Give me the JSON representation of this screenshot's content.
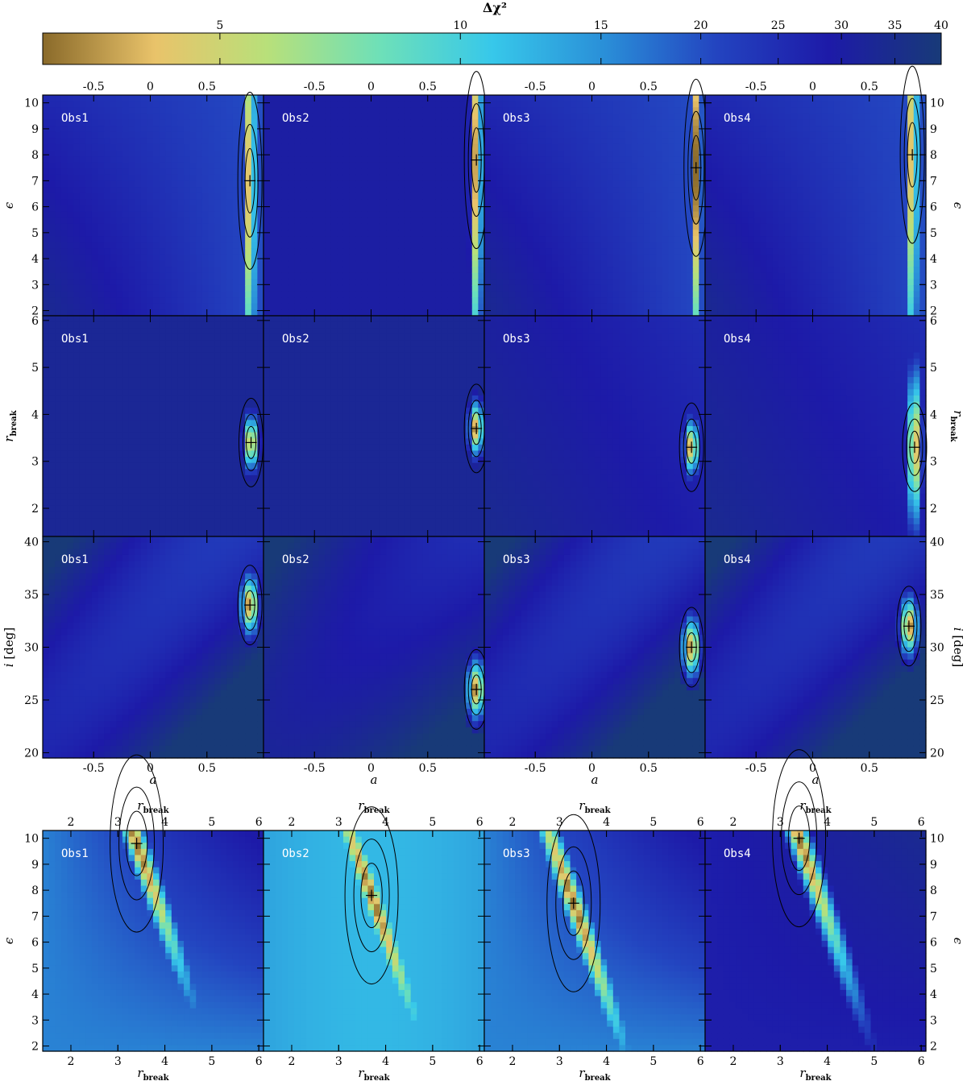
{
  "colorbar": {
    "title": "Δχ²",
    "ticks": [
      5,
      10,
      15,
      20,
      25,
      30,
      35,
      40
    ],
    "range": [
      3,
      40
    ],
    "stops": [
      "#8a6a2a",
      "#e9c36a",
      "#b8e07a",
      "#6ee0b8",
      "#37c8ea",
      "#2a8fd8",
      "#2344c0",
      "#1d1aa8",
      "#183a78"
    ]
  },
  "observations": [
    "Obs1",
    "Obs2",
    "Obs3",
    "Obs4"
  ],
  "axes": {
    "a": {
      "label": "a",
      "range": [
        -0.95,
        1.0
      ],
      "ticks": [
        -0.5,
        0,
        0.5
      ],
      "tick_labels": [
        "-0.5",
        "0",
        "0.5"
      ]
    },
    "epsilon": {
      "label": "ϵ",
      "range": [
        1.8,
        10.3
      ],
      "ticks": [
        2,
        3,
        4,
        5,
        6,
        7,
        8,
        9,
        10
      ]
    },
    "r_break": {
      "label": "r",
      "sub": "break",
      "range": [
        1.4,
        6.1
      ],
      "ticks": [
        2,
        3,
        4,
        5,
        6
      ]
    },
    "incl": {
      "label": "i",
      "unit": "[deg]",
      "range": [
        19.5,
        40.5
      ],
      "ticks": [
        20,
        25,
        30,
        35,
        40
      ]
    },
    "r_break_x": {
      "label": "r",
      "sub": "break",
      "range": [
        1.4,
        6.1
      ],
      "ticks": [
        2,
        3,
        4,
        5,
        6
      ]
    }
  },
  "chart_data": [
    {
      "type": "heatmap",
      "row": "epsilon-vs-a",
      "x": "a",
      "y": "epsilon",
      "panels": [
        {
          "obs": "Obs1",
          "best_fit": [
            0.88,
            7.0
          ]
        },
        {
          "obs": "Obs2",
          "best_fit": [
            0.93,
            7.8
          ]
        },
        {
          "obs": "Obs3",
          "best_fit": [
            0.92,
            7.5
          ]
        },
        {
          "obs": "Obs4",
          "best_fit": [
            0.88,
            8.0
          ]
        }
      ]
    },
    {
      "type": "heatmap",
      "row": "rbreak-vs-a",
      "x": "a",
      "y": "r_break",
      "panels": [
        {
          "obs": "Obs1",
          "best_fit": [
            0.89,
            3.4
          ]
        },
        {
          "obs": "Obs2",
          "best_fit": [
            0.93,
            3.7
          ]
        },
        {
          "obs": "Obs3",
          "best_fit": [
            0.88,
            3.3
          ]
        },
        {
          "obs": "Obs4",
          "best_fit": [
            0.9,
            3.3
          ]
        }
      ]
    },
    {
      "type": "heatmap",
      "row": "incl-vs-a",
      "x": "a",
      "y": "incl",
      "panels": [
        {
          "obs": "Obs1",
          "best_fit": [
            0.88,
            34.0
          ]
        },
        {
          "obs": "Obs2",
          "best_fit": [
            0.93,
            26.0
          ]
        },
        {
          "obs": "Obs3",
          "best_fit": [
            0.88,
            30.0
          ]
        },
        {
          "obs": "Obs4",
          "best_fit": [
            0.85,
            32.0
          ]
        }
      ]
    },
    {
      "type": "heatmap",
      "row": "epsilon-vs-rbreak",
      "x": "r_break",
      "y": "epsilon",
      "panels": [
        {
          "obs": "Obs1",
          "best_fit": [
            3.4,
            9.8
          ]
        },
        {
          "obs": "Obs2",
          "best_fit": [
            3.7,
            7.8
          ]
        },
        {
          "obs": "Obs3",
          "best_fit": [
            3.3,
            7.5
          ]
        },
        {
          "obs": "Obs4",
          "best_fit": [
            3.4,
            10.0
          ]
        }
      ]
    }
  ]
}
